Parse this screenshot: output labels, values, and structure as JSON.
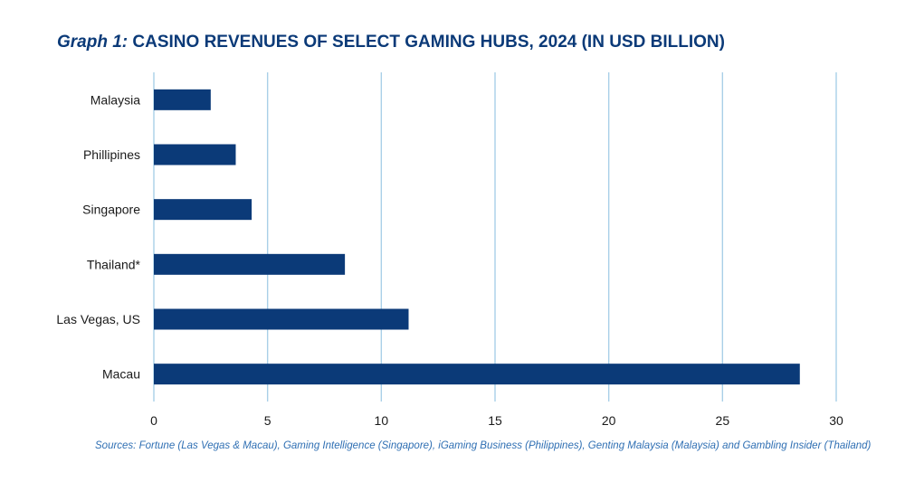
{
  "title": {
    "prefix": "Graph 1:",
    "main": "CASINO REVENUES OF SELECT GAMING HUBS, 2024 (IN USD BILLION)"
  },
  "source": "Sources: Fortune (Las Vegas & Macau), Gaming Intelligence (Singapore), iGaming Business (Philippines), Genting Malaysia (Malaysia) and Gambling Insider (Thailand)",
  "colors": {
    "bar": "#0b3a78",
    "grid": "#a9cfe8",
    "title": "#0b3a78",
    "source": "#2f6fb3",
    "text": "#1a1a1a"
  },
  "chart_data": {
    "type": "bar",
    "orientation": "horizontal",
    "categories": [
      "Malaysia",
      "Phillipines",
      "Singapore",
      "Thailand*",
      "Las Vegas, US",
      "Macau"
    ],
    "values": [
      2.5,
      3.6,
      4.3,
      8.4,
      11.2,
      28.4
    ],
    "xlim": [
      0,
      30
    ],
    "xticks": [
      0,
      5,
      10,
      15,
      20,
      25,
      30
    ],
    "grid": "vertical",
    "legend": "none"
  }
}
